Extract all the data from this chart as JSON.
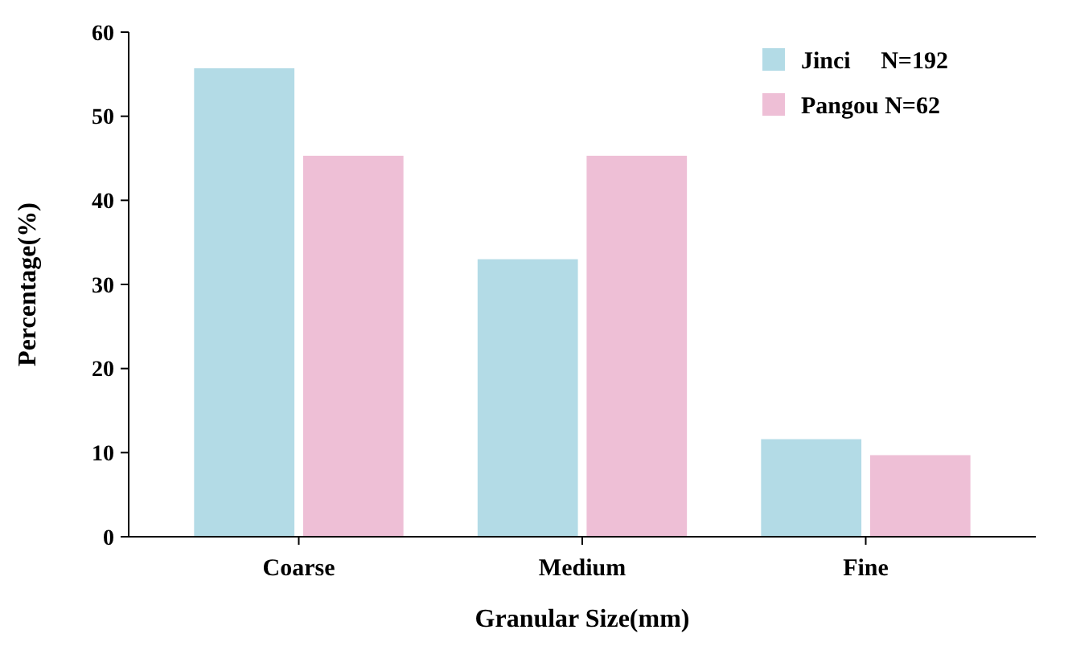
{
  "chart_data": {
    "type": "bar",
    "xlabel": "Granular Size(mm)",
    "ylabel": "Percentage(%)",
    "categories": [
      "Coarse",
      "Medium",
      "Fine"
    ],
    "series": [
      {
        "name": "Jinci     N=192",
        "color": "#b3dbe6",
        "values": [
          55.7,
          33.0,
          11.6
        ]
      },
      {
        "name": "Pangou N=62",
        "color": "#eebfd6",
        "values": [
          45.3,
          45.3,
          9.7
        ]
      }
    ],
    "ylim": [
      0,
      60
    ],
    "yticks": [
      0,
      10,
      20,
      30,
      40,
      50,
      60
    ],
    "legend": "top right"
  }
}
